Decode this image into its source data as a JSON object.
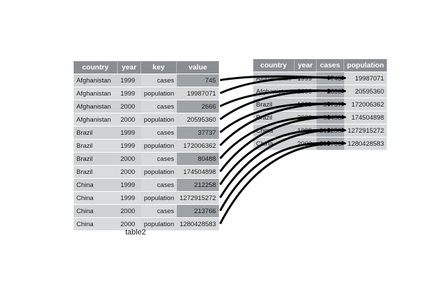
{
  "left_table": {
    "caption": "table2",
    "columns": [
      "country",
      "year",
      "key",
      "value"
    ],
    "rows": [
      [
        "Afghanistan",
        "1999",
        "cases",
        "745"
      ],
      [
        "Afghanistan",
        "1999",
        "population",
        "19987071"
      ],
      [
        "Afghanistan",
        "2000",
        "cases",
        "2666"
      ],
      [
        "Afghanistan",
        "2000",
        "population",
        "20595360"
      ],
      [
        "Brazil",
        "1999",
        "cases",
        "37737"
      ],
      [
        "Brazil",
        "1999",
        "population",
        "172006362"
      ],
      [
        "Brazil",
        "2000",
        "cases",
        "80488"
      ],
      [
        "Brazil",
        "2000",
        "population",
        "174504898"
      ],
      [
        "China",
        "1999",
        "cases",
        "212258"
      ],
      [
        "China",
        "1999",
        "population",
        "1272915272"
      ],
      [
        "China",
        "2000",
        "cases",
        "213766"
      ],
      [
        "China",
        "2000",
        "population",
        "1280428583"
      ]
    ]
  },
  "right_table": {
    "columns": [
      "country",
      "year",
      "cases",
      "population"
    ],
    "rows": [
      [
        "Afghanistan",
        "1999",
        "745",
        "19987071"
      ],
      [
        "Afghanistan",
        "2000",
        "2666",
        "20595360"
      ],
      [
        "Brazil",
        "1999",
        "37737",
        "172006362"
      ],
      [
        "Brazil",
        "2000",
        "80488",
        "174504898"
      ],
      [
        "China",
        "1999",
        "212258",
        "1272915272"
      ],
      [
        "China",
        "2000",
        "213766",
        "1280428583"
      ]
    ]
  },
  "colors": {
    "header": "#8a8d92",
    "arrow": "#000000",
    "highlight_cell": "#9fa2a6"
  }
}
